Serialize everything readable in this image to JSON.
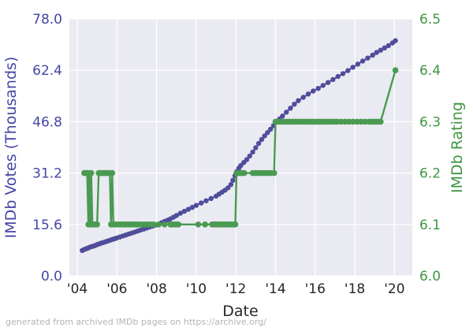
{
  "figure": {
    "xlabel": "Date",
    "ylabel_left": "IMDb Votes (Thousands)",
    "ylabel_right": "IMDb Rating",
    "footer": "generated from archived IMDb pages on https://archive.org/"
  },
  "colors": {
    "plot_bg": "#eaeaf2",
    "grid": "#ffffff",
    "votes_line": "#504d9b",
    "votes_text": "#4646a5",
    "rating_line": "#4a9a52",
    "rating_text": "#3e9644",
    "xtick_text": "#262626",
    "footer_text": "#b4b4b4",
    "figure_bg": "#ffffff"
  },
  "chart_data": {
    "type": "line",
    "title": "",
    "xlabel": "Date",
    "grid": true,
    "legend_position": "none",
    "x_ticks": [
      "'04",
      "'06",
      "'08",
      "'10",
      "'12",
      "'14",
      "'16",
      "'18",
      "'20"
    ],
    "x_tick_years": [
      2004,
      2006,
      2008,
      2010,
      2012,
      2014,
      2016,
      2018,
      2020
    ],
    "xlim": [
      2003.6,
      2020.9
    ],
    "series": [
      {
        "name": "IMDb Votes (Thousands)",
        "axis": "left",
        "color": "#504d9b",
        "tick_color": "#4646a5",
        "ylim": [
          0,
          78
        ],
        "y_tick_labels": [
          "78.0",
          "62.4",
          "46.8",
          "31.2",
          "15.6",
          "0.0"
        ],
        "y_tick_values": [
          78,
          62.4,
          46.8,
          31.2,
          15.6,
          0
        ],
        "points": [
          [
            2004.25,
            7.7
          ],
          [
            2004.32,
            7.9
          ],
          [
            2004.4,
            8.1
          ],
          [
            2004.48,
            8.3
          ],
          [
            2004.56,
            8.5
          ],
          [
            2004.64,
            8.7
          ],
          [
            2004.72,
            8.9
          ],
          [
            2004.8,
            9.0
          ],
          [
            2004.9,
            9.2
          ],
          [
            2005.0,
            9.5
          ],
          [
            2005.1,
            9.7
          ],
          [
            2005.2,
            9.9
          ],
          [
            2005.3,
            10.1
          ],
          [
            2005.4,
            10.3
          ],
          [
            2005.5,
            10.5
          ],
          [
            2005.6,
            10.7
          ],
          [
            2005.7,
            10.9
          ],
          [
            2005.8,
            11.1
          ],
          [
            2005.9,
            11.3
          ],
          [
            2006.0,
            11.5
          ],
          [
            2006.15,
            11.8
          ],
          [
            2006.3,
            12.1
          ],
          [
            2006.45,
            12.4
          ],
          [
            2006.6,
            12.7
          ],
          [
            2006.75,
            13.0
          ],
          [
            2006.9,
            13.3
          ],
          [
            2007.05,
            13.6
          ],
          [
            2007.2,
            13.9
          ],
          [
            2007.35,
            14.2
          ],
          [
            2007.5,
            14.5
          ],
          [
            2007.65,
            14.8
          ],
          [
            2007.8,
            15.1
          ],
          [
            2007.95,
            15.4
          ],
          [
            2008.1,
            15.7
          ],
          [
            2008.25,
            16.1
          ],
          [
            2008.4,
            16.5
          ],
          [
            2008.55,
            16.9
          ],
          [
            2008.7,
            17.3
          ],
          [
            2008.85,
            17.8
          ],
          [
            2009.0,
            18.3
          ],
          [
            2009.2,
            19.0
          ],
          [
            2009.4,
            19.6
          ],
          [
            2009.6,
            20.2
          ],
          [
            2009.8,
            20.8
          ],
          [
            2010.0,
            21.4
          ],
          [
            2010.25,
            22.1
          ],
          [
            2010.5,
            22.8
          ],
          [
            2010.75,
            23.5
          ],
          [
            2011.0,
            24.2
          ],
          [
            2011.15,
            24.8
          ],
          [
            2011.3,
            25.4
          ],
          [
            2011.45,
            26.0
          ],
          [
            2011.6,
            26.7
          ],
          [
            2011.75,
            27.7
          ],
          [
            2011.85,
            29.0
          ],
          [
            2011.95,
            30.4
          ],
          [
            2012.05,
            31.7
          ],
          [
            2012.15,
            32.7
          ],
          [
            2012.25,
            33.5
          ],
          [
            2012.4,
            34.4
          ],
          [
            2012.55,
            35.3
          ],
          [
            2012.7,
            36.4
          ],
          [
            2012.85,
            37.6
          ],
          [
            2013.0,
            38.9
          ],
          [
            2013.15,
            40.2
          ],
          [
            2013.3,
            41.4
          ],
          [
            2013.45,
            42.5
          ],
          [
            2013.6,
            43.5
          ],
          [
            2013.75,
            44.5
          ],
          [
            2013.9,
            45.6
          ],
          [
            2014.05,
            46.7
          ],
          [
            2014.2,
            47.6
          ],
          [
            2014.35,
            48.5
          ],
          [
            2014.55,
            49.7
          ],
          [
            2014.75,
            50.9
          ],
          [
            2014.95,
            52.1
          ],
          [
            2015.15,
            53.2
          ],
          [
            2015.4,
            54.2
          ],
          [
            2015.65,
            55.2
          ],
          [
            2015.9,
            56.1
          ],
          [
            2016.15,
            56.9
          ],
          [
            2016.4,
            57.8
          ],
          [
            2016.65,
            58.7
          ],
          [
            2016.9,
            59.6
          ],
          [
            2017.15,
            60.5
          ],
          [
            2017.4,
            61.4
          ],
          [
            2017.65,
            62.3
          ],
          [
            2017.9,
            63.3
          ],
          [
            2018.15,
            64.3
          ],
          [
            2018.4,
            65.2
          ],
          [
            2018.65,
            66.1
          ],
          [
            2018.9,
            67.0
          ],
          [
            2019.1,
            67.8
          ],
          [
            2019.3,
            68.5
          ],
          [
            2019.5,
            69.2
          ],
          [
            2019.7,
            69.9
          ],
          [
            2019.9,
            70.7
          ],
          [
            2020.05,
            71.4
          ]
        ]
      },
      {
        "name": "IMDb Rating",
        "axis": "right",
        "color": "#4a9a52",
        "tick_color": "#3e9644",
        "ylim": [
          6.0,
          6.5
        ],
        "y_tick_labels": [
          "6.5",
          "6.4",
          "6.3",
          "6.2",
          "6.1",
          "6.0"
        ],
        "y_tick_values": [
          6.5,
          6.4,
          6.3,
          6.2,
          6.1,
          6.0
        ],
        "points": [
          [
            2004.35,
            6.2
          ],
          [
            2004.42,
            6.2
          ],
          [
            2004.5,
            6.2
          ],
          [
            2004.56,
            6.1
          ],
          [
            2004.6,
            6.2
          ],
          [
            2004.66,
            6.1
          ],
          [
            2004.7,
            6.2
          ],
          [
            2004.76,
            6.1
          ],
          [
            2004.84,
            6.1
          ],
          [
            2004.92,
            6.1
          ],
          [
            2005.0,
            6.1
          ],
          [
            2005.08,
            6.2
          ],
          [
            2005.16,
            6.2
          ],
          [
            2005.26,
            6.2
          ],
          [
            2005.36,
            6.2
          ],
          [
            2005.46,
            6.2
          ],
          [
            2005.56,
            6.2
          ],
          [
            2005.64,
            6.2
          ],
          [
            2005.7,
            6.1
          ],
          [
            2005.76,
            6.2
          ],
          [
            2005.82,
            6.1
          ],
          [
            2005.9,
            6.1
          ],
          [
            2006.0,
            6.1
          ],
          [
            2006.1,
            6.1
          ],
          [
            2006.2,
            6.1
          ],
          [
            2006.3,
            6.1
          ],
          [
            2006.4,
            6.1
          ],
          [
            2006.5,
            6.1
          ],
          [
            2006.6,
            6.1
          ],
          [
            2006.7,
            6.1
          ],
          [
            2006.8,
            6.1
          ],
          [
            2006.9,
            6.1
          ],
          [
            2007.0,
            6.1
          ],
          [
            2007.1,
            6.1
          ],
          [
            2007.25,
            6.1
          ],
          [
            2007.4,
            6.1
          ],
          [
            2007.55,
            6.1
          ],
          [
            2007.7,
            6.1
          ],
          [
            2007.85,
            6.1
          ],
          [
            2008.1,
            6.1
          ],
          [
            2008.4,
            6.1
          ],
          [
            2008.7,
            6.1
          ],
          [
            2008.8,
            6.1
          ],
          [
            2008.9,
            6.1
          ],
          [
            2009.0,
            6.1
          ],
          [
            2009.1,
            6.1
          ],
          [
            2010.1,
            6.1
          ],
          [
            2010.45,
            6.1
          ],
          [
            2010.8,
            6.1
          ],
          [
            2010.9,
            6.1
          ],
          [
            2011.0,
            6.1
          ],
          [
            2011.1,
            6.1
          ],
          [
            2011.2,
            6.1
          ],
          [
            2011.3,
            6.1
          ],
          [
            2011.4,
            6.1
          ],
          [
            2011.5,
            6.1
          ],
          [
            2011.6,
            6.1
          ],
          [
            2011.7,
            6.1
          ],
          [
            2011.8,
            6.1
          ],
          [
            2011.9,
            6.1
          ],
          [
            2011.97,
            6.1
          ],
          [
            2012.03,
            6.2
          ],
          [
            2012.1,
            6.2
          ],
          [
            2012.18,
            6.2
          ],
          [
            2012.26,
            6.2
          ],
          [
            2012.34,
            6.2
          ],
          [
            2012.42,
            6.2
          ],
          [
            2012.85,
            6.2
          ],
          [
            2013.0,
            6.2
          ],
          [
            2013.15,
            6.2
          ],
          [
            2013.3,
            6.2
          ],
          [
            2013.45,
            6.2
          ],
          [
            2013.6,
            6.2
          ],
          [
            2013.75,
            6.2
          ],
          [
            2013.93,
            6.2
          ],
          [
            2014.0,
            6.3
          ],
          [
            2014.1,
            6.3
          ],
          [
            2014.25,
            6.3
          ],
          [
            2014.4,
            6.3
          ],
          [
            2014.55,
            6.3
          ],
          [
            2014.7,
            6.3
          ],
          [
            2014.85,
            6.3
          ],
          [
            2015.0,
            6.3
          ],
          [
            2015.15,
            6.3
          ],
          [
            2015.3,
            6.3
          ],
          [
            2015.45,
            6.3
          ],
          [
            2015.6,
            6.3
          ],
          [
            2015.75,
            6.3
          ],
          [
            2015.9,
            6.3
          ],
          [
            2016.05,
            6.3
          ],
          [
            2016.2,
            6.3
          ],
          [
            2016.35,
            6.3
          ],
          [
            2016.5,
            6.3
          ],
          [
            2016.65,
            6.3
          ],
          [
            2016.8,
            6.3
          ],
          [
            2016.95,
            6.3
          ],
          [
            2017.1,
            6.3
          ],
          [
            2017.3,
            6.3
          ],
          [
            2017.5,
            6.3
          ],
          [
            2017.7,
            6.3
          ],
          [
            2017.9,
            6.3
          ],
          [
            2018.1,
            6.3
          ],
          [
            2018.3,
            6.3
          ],
          [
            2018.5,
            6.3
          ],
          [
            2018.7,
            6.3
          ],
          [
            2018.85,
            6.3
          ],
          [
            2019.0,
            6.3
          ],
          [
            2019.15,
            6.3
          ],
          [
            2019.3,
            6.3
          ],
          [
            2020.05,
            6.4
          ]
        ]
      }
    ]
  }
}
